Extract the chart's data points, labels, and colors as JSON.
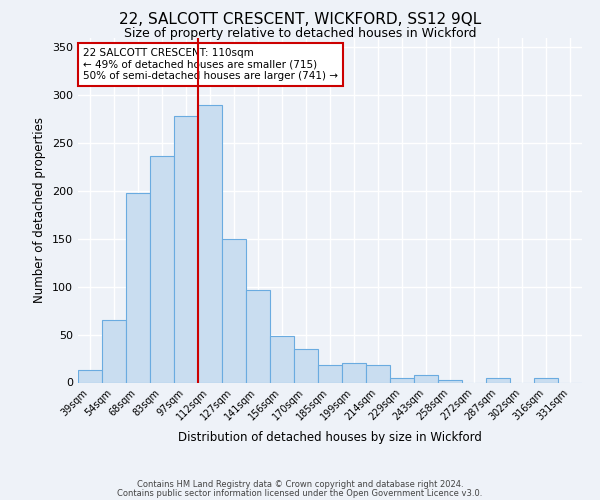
{
  "title": "22, SALCOTT CRESCENT, WICKFORD, SS12 9QL",
  "subtitle": "Size of property relative to detached houses in Wickford",
  "xlabel": "Distribution of detached houses by size in Wickford",
  "ylabel": "Number of detached properties",
  "footnote1": "Contains HM Land Registry data © Crown copyright and database right 2024.",
  "footnote2": "Contains public sector information licensed under the Open Government Licence v3.0.",
  "bar_labels": [
    "39sqm",
    "54sqm",
    "68sqm",
    "83sqm",
    "97sqm",
    "112sqm",
    "127sqm",
    "141sqm",
    "156sqm",
    "170sqm",
    "185sqm",
    "199sqm",
    "214sqm",
    "229sqm",
    "243sqm",
    "258sqm",
    "272sqm",
    "287sqm",
    "302sqm",
    "316sqm",
    "331sqm"
  ],
  "bar_values": [
    13,
    65,
    198,
    236,
    278,
    290,
    150,
    97,
    49,
    35,
    18,
    20,
    18,
    5,
    8,
    3,
    0,
    5,
    0,
    5,
    0
  ],
  "bar_color": "#c9ddf0",
  "bar_edge_color": "#6aabe0",
  "annotation_title": "22 SALCOTT CRESCENT: 110sqm",
  "annotation_line1": "← 49% of detached houses are smaller (715)",
  "annotation_line2": "50% of semi-detached houses are larger (741) →",
  "annotation_box_color": "#ffffff",
  "annotation_box_edge": "#cc0000",
  "vline_color": "#cc0000",
  "vline_bar_index": 5,
  "ylim": [
    0,
    360
  ],
  "yticks": [
    0,
    50,
    100,
    150,
    200,
    250,
    300,
    350
  ],
  "background_color": "#eef2f8",
  "grid_color": "#ffffff",
  "title_fontsize": 11,
  "subtitle_fontsize": 9,
  "axis_label_fontsize": 8.5,
  "tick_fontsize": 7,
  "footnote_fontsize": 6
}
